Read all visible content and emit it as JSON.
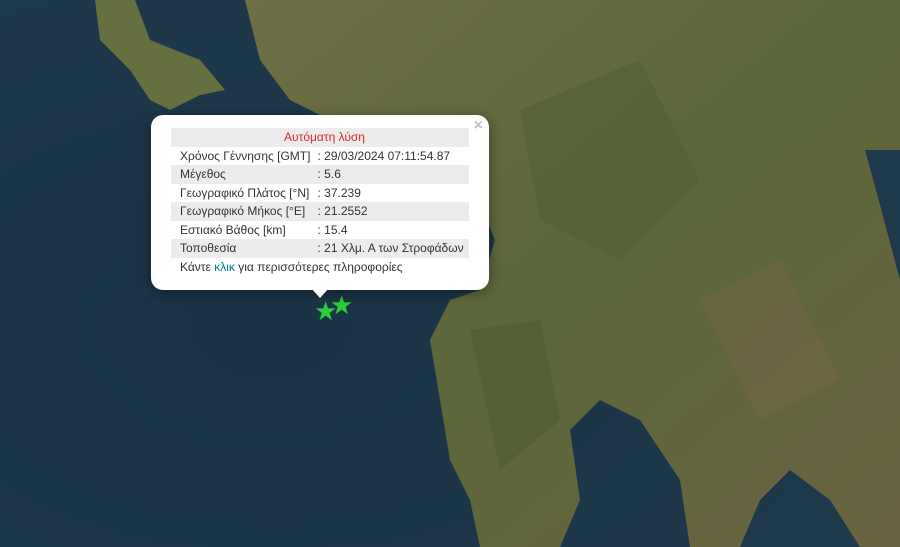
{
  "popup": {
    "title": "Αυτόματη λύση",
    "close_icon": "×",
    "rows": [
      {
        "label": "Χρόνος Γέννησης [GMT]",
        "value": ": 29/03/2024 07:11:54.87"
      },
      {
        "label": "Μέγεθος",
        "value": ": 5.6"
      },
      {
        "label": "Γεωγραφικό Πλάτος [°N]",
        "value": ": 37.239"
      },
      {
        "label": "Γεωγραφικό Μήκος [°E]",
        "value": ": 21.2552"
      },
      {
        "label": "Εστιακό Βάθος [km]",
        "value": ": 15.4"
      },
      {
        "label": "Τοποθεσία",
        "value": ": 21 Χλμ. Α των Στροφάδων"
      }
    ],
    "more_prefix": "Κάντε ",
    "more_link": "κλικ",
    "more_suffix": " για περισσότερες πληροφορίες"
  },
  "markers": [
    {
      "icon": "star-icon",
      "color": "#2ecc40"
    },
    {
      "icon": "star-icon",
      "color": "#2ecc40"
    }
  ],
  "colors": {
    "sea": "#1d3547",
    "land": "#5e6a3c",
    "title": "#d9262f",
    "link": "#0078a8"
  }
}
